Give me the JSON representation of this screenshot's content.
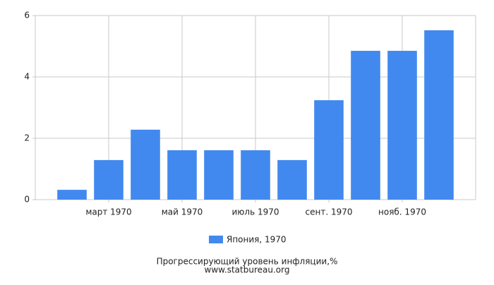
{
  "chart_data": {
    "type": "bar",
    "categories": [
      null,
      "март 1970",
      null,
      "май 1970",
      null,
      "июль 1970",
      null,
      "сент. 1970",
      null,
      "нояб. 1970",
      null
    ],
    "series": [
      {
        "name": "Япония, 1970",
        "color": "#4189ee",
        "values": [
          0.32,
          1.29,
          2.28,
          1.61,
          1.61,
          1.61,
          1.29,
          3.24,
          4.85,
          4.85,
          5.52
        ]
      }
    ],
    "ylim": [
      0,
      6
    ],
    "yticks": [
      0,
      2,
      4,
      6
    ],
    "grid": true,
    "title": "Прогрессирующий уровень инфляции,%",
    "subtitle": "www.statbureau.org"
  }
}
